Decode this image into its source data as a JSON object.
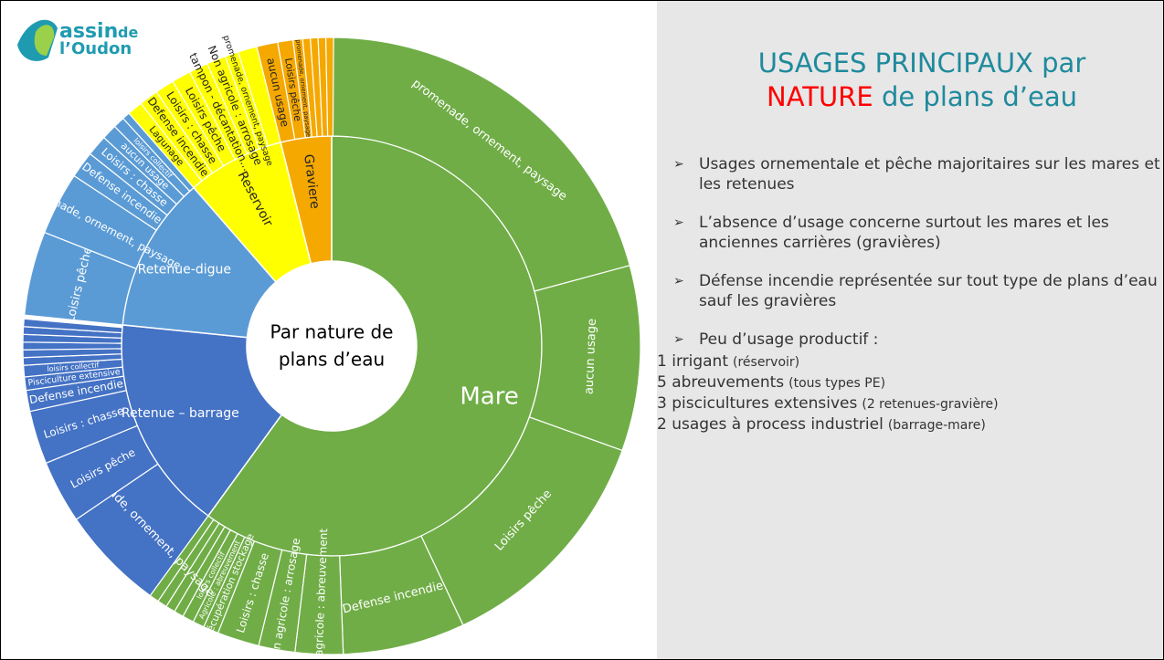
{
  "logo": {
    "parts": [
      "assin",
      "de",
      "l’Oudon"
    ]
  },
  "chart_data": {
    "type": "sunburst",
    "center_label": [
      "Par nature de",
      "plans d’eau"
    ],
    "categories": [
      "Mare",
      "Retenue – barrage",
      "Retenue-digue",
      "Reservoir",
      "Graviere"
    ],
    "values": [
      60,
      16.6,
      12,
      7.5,
      3.9
    ],
    "colors": [
      "#70ad47",
      "#4472c4",
      "#5b9bd5",
      "#ffff00",
      "#f5a800"
    ],
    "children": [
      {
        "categories": [
          "promenade, ornement, paysage",
          "aucun usage",
          "Loisirs pêche",
          "Defense incendie",
          "Non agricole : abreuvement",
          "Non agricole : arrosage",
          "Loisirs : chasse",
          "récupération stockage",
          "Agricole : abreuvement",
          "loisirs collectif",
          null,
          null,
          null,
          null
        ],
        "values": [
          20.8,
          9.7,
          12.5,
          6.4,
          2.5,
          1.9,
          2.2,
          0.8,
          0.6,
          0.6,
          0.5,
          0.5,
          0.5,
          0.5
        ]
      },
      {
        "categories": [
          "promenade, ornement, paysage",
          "Loisirs pêche",
          "Loisirs : chasse",
          "Defense incendie",
          "Pisciculture extensive",
          "loisirs collectif",
          null,
          null,
          null,
          null,
          null,
          null
        ],
        "values": [
          5.5,
          3.3,
          2.8,
          1.1,
          0.7,
          0.6,
          0.4,
          0.4,
          0.4,
          0.4,
          0.4,
          0.4
        ]
      },
      {
        "categories": [
          "Loisirs pêche",
          "promenade, ornement, paysage",
          "Defense incendie",
          "Loisirs : chasse",
          "aucun usage",
          "loisirs collectif",
          null
        ],
        "values": [
          4.4,
          3.3,
          1.4,
          1.1,
          0.8,
          0.6,
          0.4
        ]
      },
      {
        "categories": [
          "Lagunage",
          "Defense incendie",
          "Loisirs : chasse",
          "Loisirs pêche",
          "tampon - décantation...",
          "Non agricole : arrosage",
          "promenade, ornement, paysage",
          null
        ],
        "values": [
          0.8,
          1.0,
          1.0,
          1.0,
          1.0,
          1.0,
          0.7,
          1.0
        ]
      },
      {
        "categories": [
          "aucun usage",
          "Loisirs pêche",
          "promenade, ornement, paysage",
          null,
          null,
          null,
          null
        ],
        "values": [
          1.1,
          0.8,
          0.5,
          0.4,
          0.4,
          0.4,
          0.4
        ]
      }
    ]
  },
  "panel": {
    "title_line1": "USAGES PRINCIPAUX par",
    "title_highlight": "NATURE",
    "title_rest": "de plans d’eau",
    "bullets": [
      "Usages ornementale et pêche majoritaires sur les mares et les retenues",
      "L’absence d’usage concerne surtout les mares et les anciennes carrières (gravières)",
      "Défense incendie représentée sur tout type de plans d’eau sauf les gravières",
      "Peu d’usage productif :"
    ],
    "lines": [
      [
        "1 irrigant",
        "(réservoir)"
      ],
      [
        "5 abreuvements",
        "(tous types PE)"
      ],
      [
        "3 piscicultures extensives",
        "(2 retenues-gravière)"
      ],
      [
        "2 usages à process industriel",
        "(barrage-mare)"
      ]
    ]
  }
}
